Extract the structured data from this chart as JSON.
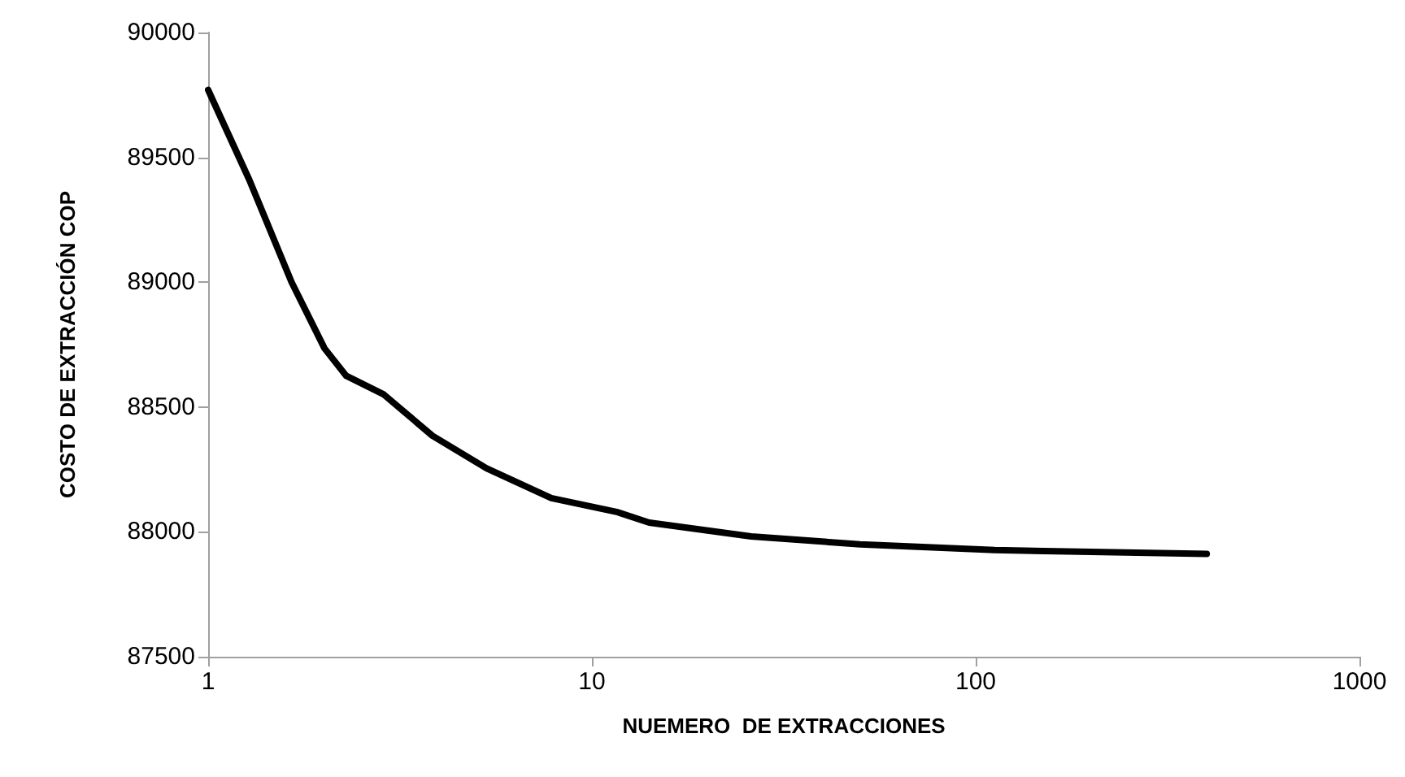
{
  "chart_data": {
    "type": "line",
    "xlabel": "NUEMERO  DE EXTRACCIONES",
    "ylabel": "COSTO DE EXTRACCIÓN COP",
    "log": "x",
    "grid": false,
    "marker": "none",
    "line_style": "solid",
    "xlim": [
      1,
      1000
    ],
    "xticks": [
      1,
      10,
      100,
      1000
    ],
    "ylim": [
      87500,
      90000
    ],
    "yticks": [
      87500,
      88000,
      88500,
      89000,
      89500,
      90000
    ],
    "series": [
      {
        "color": "#000000",
        "x": [
          1,
          1.28,
          1.65,
          2.01,
          2.29,
          2.87,
          3.84,
          5.31,
          7.84,
          11.6,
          14.1,
          26,
          50,
          112,
          400
        ],
        "values": [
          89770,
          89410,
          89000,
          88735,
          88625,
          88550,
          88385,
          88255,
          88135,
          88080,
          88037,
          87982,
          87950,
          87927,
          87912
        ]
      }
    ]
  }
}
